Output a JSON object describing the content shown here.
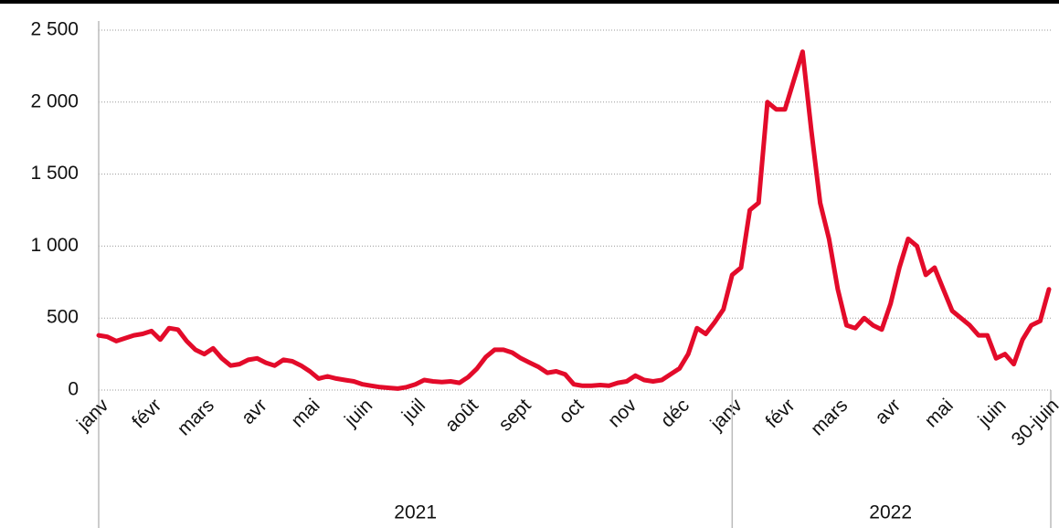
{
  "chart_data": {
    "type": "line",
    "categories": [
      "janv",
      null,
      null,
      null,
      null,
      null,
      "févr",
      null,
      null,
      null,
      null,
      null,
      "mars",
      null,
      null,
      null,
      null,
      null,
      "avr",
      null,
      null,
      null,
      null,
      null,
      "mai",
      null,
      null,
      null,
      null,
      null,
      "juin",
      null,
      null,
      null,
      null,
      null,
      "juil",
      null,
      null,
      null,
      null,
      null,
      "août",
      null,
      null,
      null,
      null,
      null,
      "sept",
      null,
      null,
      null,
      null,
      null,
      "oct",
      null,
      null,
      null,
      null,
      null,
      "nov",
      null,
      null,
      null,
      null,
      null,
      "déc",
      null,
      null,
      null,
      null,
      null,
      "janv",
      null,
      null,
      null,
      null,
      null,
      "févr",
      null,
      null,
      null,
      null,
      null,
      "mars",
      null,
      null,
      null,
      null,
      null,
      "avr",
      null,
      null,
      null,
      null,
      null,
      "mai",
      null,
      null,
      null,
      null,
      null,
      "juin",
      null,
      null,
      null,
      null,
      null,
      "30-juin"
    ],
    "years": [
      "2021",
      "2022"
    ],
    "series": [
      {
        "color": "#e30b2a",
        "values": [
          380,
          370,
          340,
          360,
          380,
          390,
          410,
          350,
          430,
          420,
          340,
          280,
          250,
          290,
          220,
          170,
          180,
          210,
          220,
          190,
          170,
          210,
          200,
          170,
          130,
          80,
          95,
          80,
          70,
          60,
          40,
          30,
          20,
          15,
          10,
          20,
          40,
          70,
          60,
          55,
          60,
          50,
          90,
          150,
          230,
          280,
          280,
          260,
          220,
          190,
          160,
          120,
          130,
          110,
          40,
          30,
          30,
          35,
          30,
          50,
          60,
          100,
          70,
          60,
          70,
          110,
          150,
          250,
          430,
          390,
          470,
          560,
          800,
          850,
          1250,
          1300,
          2000,
          1950,
          1950,
          2150,
          2350,
          1800,
          1300,
          1050,
          700,
          450,
          430,
          500,
          450,
          420,
          600,
          850,
          1050,
          1000,
          800,
          850,
          700,
          550,
          500,
          450,
          380,
          380,
          220,
          250,
          180,
          350,
          450,
          480,
          700
        ]
      }
    ],
    "ylim": [
      0,
      2500
    ],
    "yticks": [
      0,
      500,
      {
        "value": 1000,
        "label": "1 000"
      },
      {
        "value": 1500,
        "label": "1 500"
      },
      {
        "value": 2000,
        "label": "2 000"
      },
      {
        "value": 2500,
        "label": "2 500"
      }
    ],
    "grid": true
  }
}
